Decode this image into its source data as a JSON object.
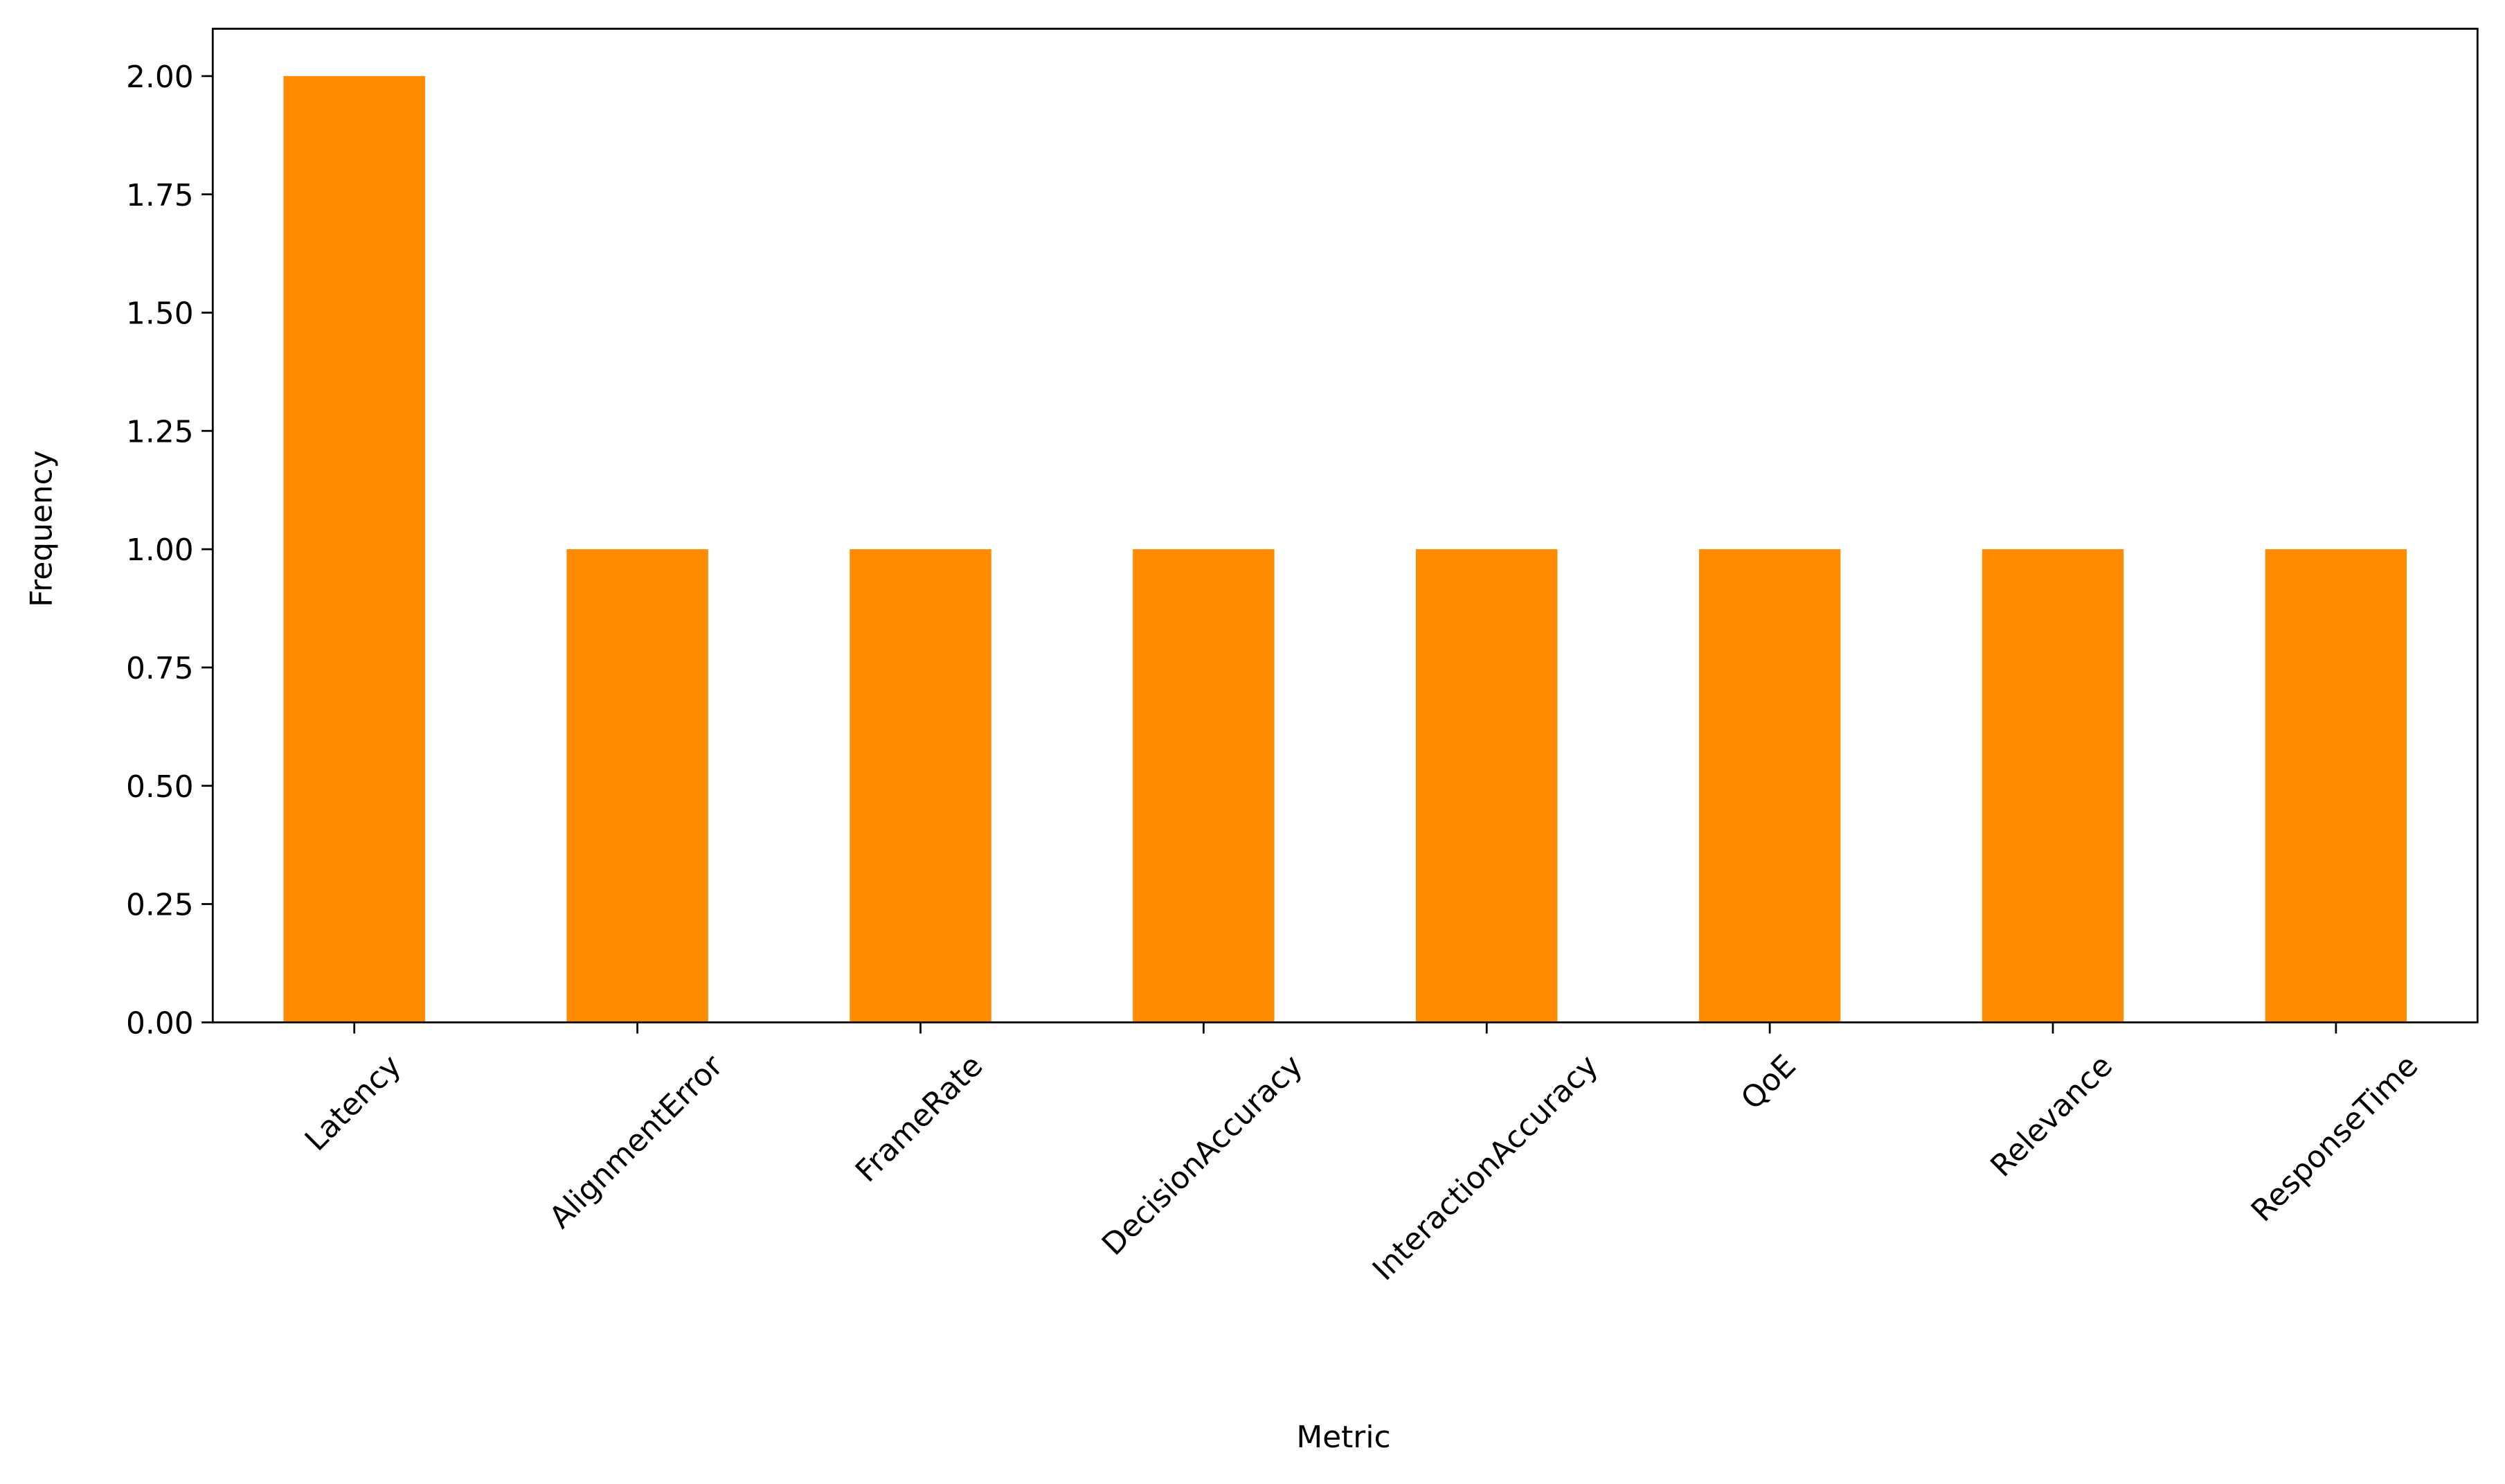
{
  "chart_data": {
    "type": "bar",
    "xlabel": "Metric",
    "ylabel": "Frequency",
    "categories": [
      "Latency",
      "AlignmentError",
      "FrameRate",
      "DecisionAccuracy",
      "InteractionAccuracy",
      "QoE",
      "Relevance",
      "ResponseTime"
    ],
    "values": [
      2,
      1,
      1,
      1,
      1,
      1,
      1,
      1
    ],
    "color": "#ff8c00",
    "ylim": [
      0,
      2.1
    ],
    "yticks": [
      {
        "value": 0,
        "label": "0.00"
      },
      0.25,
      {
        "value": 0.5,
        "label": "0.50"
      },
      0.75,
      {
        "value": 1,
        "label": "1.00"
      },
      1.25,
      {
        "value": 1.5,
        "label": "1.50"
      },
      1.75,
      {
        "value": 2,
        "label": "2.00"
      }
    ]
  }
}
